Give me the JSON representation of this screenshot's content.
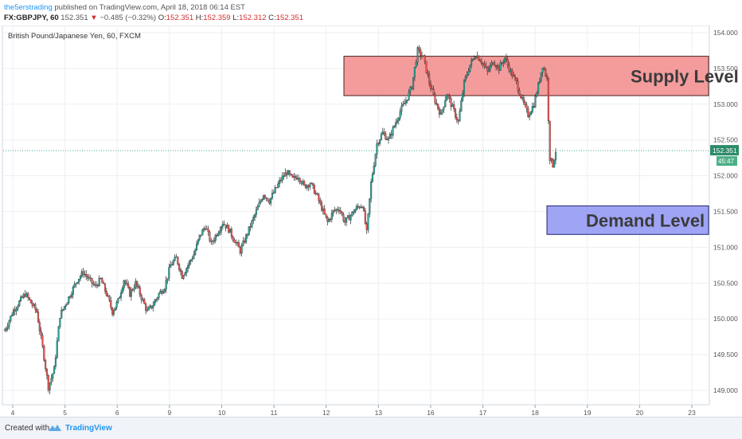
{
  "header": {
    "author": "the5erstrading",
    "published": "published on TradingView.com, April 18, 2018 06:14 EST",
    "symbol": "FX:GBPJPY, 60",
    "last": "152.351",
    "change": "−0.485 (−0.32%)",
    "ohlc": [
      {
        "label": "O:",
        "value": "152.351"
      },
      {
        "label": "H:",
        "value": "152.359"
      },
      {
        "label": "L:",
        "value": "152.312"
      },
      {
        "label": "C:",
        "value": "152.351"
      }
    ]
  },
  "chart_data": {
    "type": "candlestick",
    "title": "British Pound/Japanese Yen, 60, FXCM",
    "ylim": [
      148.8,
      154.1
    ],
    "y_ticks": [
      "154.000",
      "153.500",
      "153.000",
      "152.500",
      "152.000",
      "151.500",
      "151.000",
      "150.500",
      "150.000",
      "149.500",
      "149.000"
    ],
    "x_ticks": [
      "4",
      "5",
      "6",
      "9",
      "10",
      "11",
      "12",
      "13",
      "16",
      "17",
      "18",
      "19",
      "20",
      "23"
    ],
    "last_price_label": "152.351",
    "last_price": 152.351,
    "indicator_label": "45:47",
    "zones": [
      {
        "label": "Supply Level",
        "from": 153.12,
        "to": 153.67,
        "color": "#f28b8b"
      },
      {
        "label": "Demand Level",
        "from": 151.18,
        "to": 151.58,
        "color": "#8f94f2"
      }
    ],
    "colors": {
      "up": "#26a69a",
      "down": "#ef5350",
      "dark": "#2b2b2b"
    },
    "anchors": [
      [
        0,
        149.84
      ],
      [
        6,
        150.12
      ],
      [
        14,
        150.35
      ],
      [
        22,
        150.1
      ],
      [
        26,
        149.6
      ],
      [
        30,
        149.05
      ],
      [
        34,
        149.3
      ],
      [
        38,
        150.05
      ],
      [
        44,
        150.3
      ],
      [
        50,
        150.55
      ],
      [
        54,
        150.65
      ],
      [
        58,
        150.55
      ],
      [
        62,
        150.45
      ],
      [
        66,
        150.55
      ],
      [
        70,
        150.35
      ],
      [
        74,
        150.1
      ],
      [
        78,
        150.25
      ],
      [
        82,
        150.55
      ],
      [
        86,
        150.35
      ],
      [
        90,
        150.5
      ],
      [
        94,
        150.3
      ],
      [
        98,
        150.1
      ],
      [
        102,
        150.2
      ],
      [
        106,
        150.35
      ],
      [
        110,
        150.45
      ],
      [
        114,
        150.75
      ],
      [
        118,
        150.85
      ],
      [
        122,
        150.6
      ],
      [
        126,
        150.75
      ],
      [
        130,
        150.9
      ],
      [
        134,
        151.15
      ],
      [
        138,
        151.3
      ],
      [
        142,
        151.05
      ],
      [
        146,
        151.2
      ],
      [
        150,
        151.35
      ],
      [
        154,
        151.25
      ],
      [
        158,
        151.1
      ],
      [
        162,
        150.95
      ],
      [
        166,
        151.15
      ],
      [
        170,
        151.35
      ],
      [
        174,
        151.55
      ],
      [
        178,
        151.75
      ],
      [
        182,
        151.65
      ],
      [
        186,
        151.8
      ],
      [
        190,
        151.95
      ],
      [
        194,
        152.05
      ],
      [
        198,
        151.95
      ],
      [
        202,
        152.0
      ],
      [
        206,
        151.85
      ],
      [
        210,
        151.9
      ],
      [
        214,
        151.75
      ],
      [
        218,
        151.55
      ],
      [
        222,
        151.35
      ],
      [
        226,
        151.5
      ],
      [
        230,
        151.55
      ],
      [
        234,
        151.35
      ],
      [
        238,
        151.45
      ],
      [
        242,
        151.55
      ],
      [
        246,
        151.6
      ],
      [
        249,
        151.2
      ],
      [
        252,
        151.9
      ],
      [
        256,
        152.45
      ],
      [
        260,
        152.6
      ],
      [
        264,
        152.5
      ],
      [
        268,
        152.7
      ],
      [
        272,
        152.9
      ],
      [
        276,
        153.05
      ],
      [
        280,
        153.25
      ],
      [
        284,
        153.75
      ],
      [
        288,
        153.65
      ],
      [
        292,
        153.3
      ],
      [
        296,
        153.05
      ],
      [
        300,
        152.85
      ],
      [
        304,
        153.15
      ],
      [
        308,
        152.95
      ],
      [
        312,
        152.75
      ],
      [
        316,
        153.3
      ],
      [
        320,
        153.55
      ],
      [
        324,
        153.7
      ],
      [
        328,
        153.6
      ],
      [
        332,
        153.45
      ],
      [
        336,
        153.6
      ],
      [
        340,
        153.5
      ],
      [
        344,
        153.65
      ],
      [
        348,
        153.45
      ],
      [
        352,
        153.3
      ],
      [
        356,
        153.05
      ],
      [
        360,
        152.85
      ],
      [
        364,
        153.0
      ],
      [
        368,
        153.35
      ],
      [
        370,
        153.55
      ],
      [
        373,
        153.35
      ],
      [
        375,
        152.25
      ],
      [
        377,
        152.15
      ],
      [
        379,
        152.35
      ]
    ]
  }
}
